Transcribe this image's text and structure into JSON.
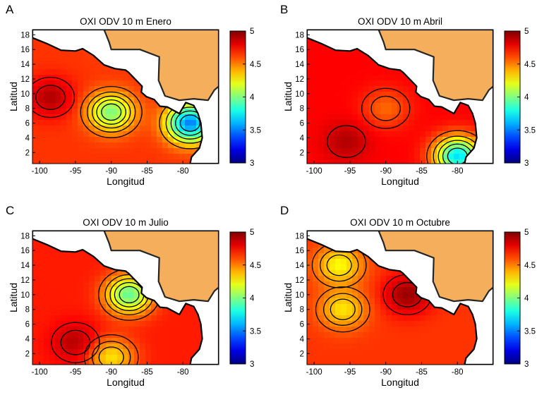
{
  "chart_data": [
    {
      "type": "heatmap",
      "panel_letter": "A",
      "title": "OXI ODV 10 m Enero",
      "xlabel": "Longitud",
      "ylabel": "Latitud",
      "x_ticks": [
        "-100",
        "-95",
        "-90",
        "-85",
        "-80"
      ],
      "y_ticks": [
        "2",
        "4",
        "6",
        "8",
        "10",
        "12",
        "14",
        "16",
        "18"
      ],
      "colorbar_ticks": [
        "3",
        "3.5",
        "4",
        "4.5",
        "5"
      ],
      "xlim": [
        -101,
        -75
      ],
      "ylim": [
        0.5,
        18.7
      ],
      "clim": [
        3,
        5
      ],
      "base_value": 4.65,
      "field_features": [
        {
          "type": "low",
          "lon": -90,
          "lat": 7.5,
          "value": 4.0
        },
        {
          "type": "high",
          "lon": -98.5,
          "lat": 9.5,
          "value": 4.9
        },
        {
          "type": "low",
          "lon": -79,
          "lat": 6,
          "value": 3.5
        },
        {
          "type": "high",
          "lon": -90,
          "lat": 17,
          "value": 4.6
        }
      ]
    },
    {
      "type": "heatmap",
      "panel_letter": "B",
      "title": "OXI ODV 10 m Abril",
      "xlabel": "Longitud",
      "ylabel": "Latitud",
      "x_ticks": [
        "-100",
        "-95",
        "-90",
        "-85",
        "-80"
      ],
      "y_ticks": [
        "2",
        "4",
        "6",
        "8",
        "10",
        "12",
        "14",
        "16",
        "18"
      ],
      "colorbar_ticks": [
        "3",
        "3.5",
        "4",
        "4.5",
        "5"
      ],
      "xlim": [
        -101,
        -75
      ],
      "ylim": [
        0.5,
        18.7
      ],
      "clim": [
        3,
        5
      ],
      "base_value": 4.75,
      "field_features": [
        {
          "type": "high",
          "lon": -95.5,
          "lat": 3.5,
          "value": 4.9
        },
        {
          "type": "low",
          "lon": -90,
          "lat": 8,
          "value": 4.55
        },
        {
          "type": "low",
          "lon": -80,
          "lat": 1.5,
          "value": 3.7
        }
      ]
    },
    {
      "type": "heatmap",
      "panel_letter": "C",
      "title": "OXI ODV 10 m Julio",
      "xlabel": "Longitud",
      "ylabel": "Latitud",
      "x_ticks": [
        "-100",
        "-95",
        "-90",
        "-85",
        "-80"
      ],
      "y_ticks": [
        "2",
        "4",
        "6",
        "8",
        "10",
        "12",
        "14",
        "16",
        "18"
      ],
      "colorbar_ticks": [
        "3",
        "3.5",
        "4",
        "4.5",
        "5"
      ],
      "xlim": [
        -101,
        -75
      ],
      "ylim": [
        0.5,
        18.7
      ],
      "clim": [
        3,
        5
      ],
      "base_value": 4.7,
      "field_features": [
        {
          "type": "low",
          "lon": -87.5,
          "lat": 10,
          "value": 3.95
        },
        {
          "type": "high",
          "lon": -95,
          "lat": 3.5,
          "value": 4.9
        },
        {
          "type": "low",
          "lon": -90,
          "lat": 1.5,
          "value": 4.3
        }
      ]
    },
    {
      "type": "heatmap",
      "panel_letter": "D",
      "title": "OXI ODV 10 m Octubre",
      "xlabel": "Longitud",
      "ylabel": "Latitud",
      "x_ticks": [
        "-100",
        "-95",
        "-90",
        "-85",
        "-80"
      ],
      "y_ticks": [
        "2",
        "4",
        "6",
        "8",
        "10",
        "12",
        "14",
        "16",
        "18"
      ],
      "colorbar_ticks": [
        "3",
        "3.5",
        "4",
        "4.5",
        "5"
      ],
      "xlim": [
        -101,
        -75
      ],
      "ylim": [
        0.5,
        18.7
      ],
      "clim": [
        3,
        5
      ],
      "base_value": 4.65,
      "field_features": [
        {
          "type": "low",
          "lon": -96,
          "lat": 8,
          "value": 4.3
        },
        {
          "type": "high",
          "lon": -87,
          "lat": 10,
          "value": 4.95
        },
        {
          "type": "low",
          "lon": -96.5,
          "lat": 14,
          "value": 4.25
        }
      ]
    }
  ]
}
